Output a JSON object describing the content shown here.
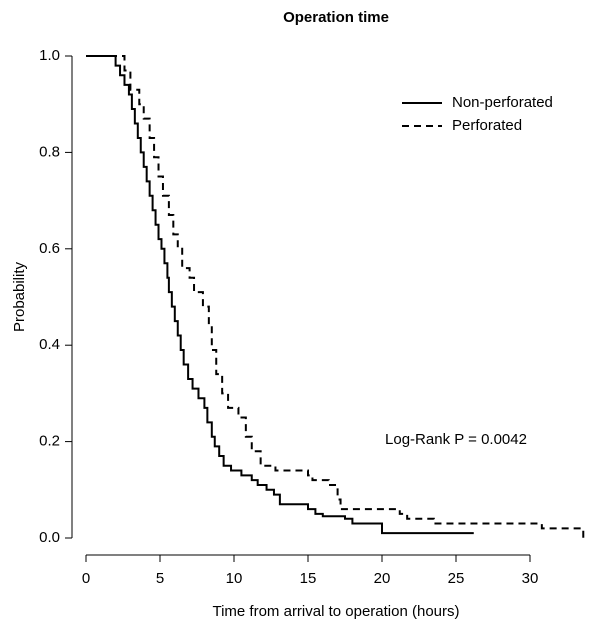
{
  "chart_data": {
    "type": "step",
    "title": "Operation time",
    "x_label": "Time from arrival to operation (hours)",
    "y_label": "Probability",
    "annotation": "Log-Rank P = 0.0042",
    "legend": "topright",
    "xlim": [
      0,
      34
    ],
    "ylim": [
      0,
      1
    ],
    "xticks": [
      0,
      5,
      10,
      15,
      20,
      25,
      30
    ],
    "yticks": [
      {
        "value": 0,
        "label": "0.0"
      },
      {
        "value": 0.2,
        "label": "0.2"
      },
      {
        "value": 0.4,
        "label": "0.4"
      },
      {
        "value": 0.6,
        "label": "0.6"
      },
      {
        "value": 0.8,
        "label": "0.8"
      },
      {
        "value": 1,
        "label": "1.0"
      }
    ],
    "series": [
      {
        "name": "Non-perforated",
        "color": "#000000",
        "dash": "solid",
        "x": [
          0,
          2.0,
          2.3,
          2.6,
          2.9,
          3.1,
          3.3,
          3.5,
          3.7,
          3.9,
          4.1,
          4.3,
          4.5,
          4.7,
          4.9,
          5.1,
          5.3,
          5.5,
          5.6,
          5.8,
          6.0,
          6.2,
          6.4,
          6.6,
          6.9,
          7.2,
          7.6,
          8.0,
          8.2,
          8.5,
          8.7,
          9.0,
          9.3,
          9.8,
          10.5,
          11.2,
          11.6,
          12.2,
          12.7,
          13.1,
          15.0,
          15.5,
          16.0,
          17.5,
          18.0,
          20.0,
          26.2
        ],
        "values": [
          1.0,
          0.98,
          0.96,
          0.94,
          0.92,
          0.89,
          0.86,
          0.83,
          0.8,
          0.77,
          0.74,
          0.71,
          0.68,
          0.65,
          0.62,
          0.6,
          0.57,
          0.54,
          0.51,
          0.48,
          0.45,
          0.42,
          0.39,
          0.36,
          0.33,
          0.31,
          0.29,
          0.27,
          0.24,
          0.21,
          0.19,
          0.17,
          0.15,
          0.14,
          0.13,
          0.12,
          0.11,
          0.1,
          0.09,
          0.07,
          0.06,
          0.05,
          0.045,
          0.04,
          0.03,
          0.01,
          0.01
        ]
      },
      {
        "name": "Perforated",
        "color": "#000000",
        "dash": "dashed",
        "x": [
          0,
          2.6,
          3.0,
          3.6,
          3.9,
          4.3,
          4.6,
          4.9,
          5.2,
          5.6,
          5.9,
          6.2,
          6.5,
          7.0,
          7.3,
          7.9,
          8.3,
          8.5,
          8.8,
          9.2,
          9.6,
          10.3,
          10.8,
          11.2,
          11.8,
          12.8,
          15.0,
          15.3,
          16.4,
          17.0,
          17.2,
          21.2,
          21.7,
          23.5,
          30.8,
          33.6
        ],
        "values": [
          1.0,
          0.97,
          0.93,
          0.9,
          0.87,
          0.83,
          0.79,
          0.75,
          0.71,
          0.67,
          0.63,
          0.6,
          0.56,
          0.54,
          0.51,
          0.48,
          0.44,
          0.39,
          0.34,
          0.3,
          0.27,
          0.25,
          0.21,
          0.18,
          0.15,
          0.14,
          0.13,
          0.12,
          0.11,
          0.08,
          0.06,
          0.05,
          0.04,
          0.03,
          0.02,
          0.0
        ]
      }
    ]
  }
}
